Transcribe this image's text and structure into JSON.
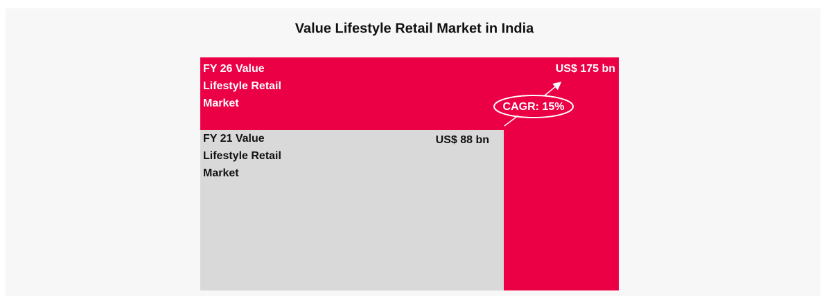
{
  "title": "Value Lifestyle Retail Market in India",
  "boxes": [
    {
      "label": [
        "FY 26 Value",
        "Lifestyle Retail",
        "Market"
      ],
      "value": "US$ 175 bn"
    },
    {
      "label": [
        "FY 21 Value",
        "Lifestyle Retail",
        "Market"
      ],
      "value": "US$ 88 bn"
    }
  ],
  "cagr": "CAGR: 15%"
}
